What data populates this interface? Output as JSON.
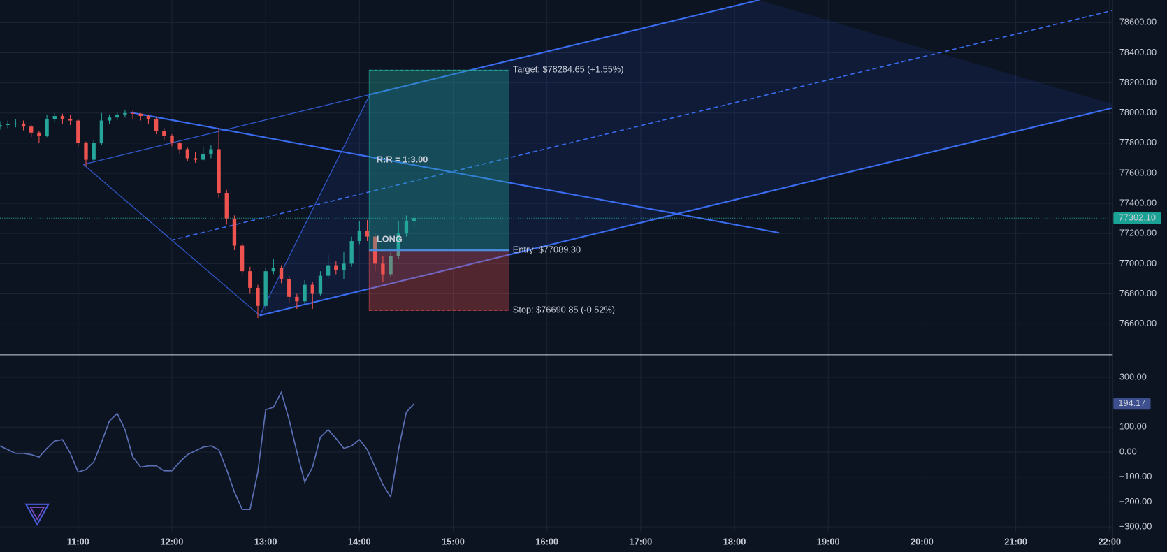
{
  "chart_data": [
    {
      "type": "candlestick",
      "x": [
        610,
        615,
        620,
        625,
        630,
        635,
        640,
        645,
        650,
        655,
        660,
        665,
        670,
        675,
        680,
        685,
        690,
        695,
        700,
        705,
        710,
        715,
        720,
        725,
        730,
        735,
        740,
        745,
        750,
        755,
        760,
        765,
        770,
        775,
        780,
        785,
        790,
        795,
        800,
        805,
        810,
        815,
        820,
        825,
        830,
        835,
        840,
        845,
        850,
        855,
        860,
        865,
        870,
        875
      ],
      "open": [
        77910,
        77920,
        77925,
        77930,
        77910,
        77870,
        77850,
        77960,
        77980,
        77960,
        77950,
        77800,
        77690,
        77800,
        77950,
        77970,
        77990,
        78000,
        77995,
        77980,
        77960,
        77880,
        77850,
        77800,
        77760,
        77700,
        77690,
        77730,
        77760,
        77470,
        77300,
        77120,
        76950,
        76840,
        76720,
        76950,
        76970,
        76900,
        76780,
        76750,
        76860,
        76800,
        76920,
        76990,
        76960,
        77000,
        77150,
        77220,
        77180,
        77000,
        76930,
        77050,
        77200,
        77280
      ],
      "high": [
        77945,
        77950,
        77960,
        77950,
        77920,
        77880,
        77990,
        78000,
        77995,
        77990,
        77960,
        77810,
        77820,
        78000,
        77990,
        78010,
        78020,
        78015,
        78000,
        77990,
        77970,
        77900,
        77860,
        77810,
        77770,
        77740,
        77780,
        77790,
        77900,
        77490,
        77320,
        77140,
        76980,
        76860,
        76970,
        77030,
        76990,
        76920,
        76800,
        76890,
        76880,
        76950,
        77060,
        77020,
        77080,
        77180,
        77280,
        77290,
        77200,
        77050,
        77080,
        77280,
        77320,
        77330
      ],
      "low": [
        77890,
        77900,
        77905,
        77885,
        77840,
        77800,
        77840,
        77940,
        77930,
        77920,
        77780,
        77650,
        77680,
        77790,
        77930,
        77950,
        77970,
        77960,
        77950,
        77930,
        77860,
        77820,
        77780,
        77730,
        77680,
        77670,
        77680,
        77700,
        77440,
        77260,
        77090,
        76920,
        76800,
        76640,
        76700,
        76930,
        76870,
        76740,
        76700,
        76730,
        76700,
        76790,
        76900,
        76930,
        76900,
        76980,
        77130,
        77150,
        76950,
        76880,
        76910,
        77030,
        77180,
        77250
      ],
      "close": [
        77920,
        77925,
        77930,
        77910,
        77870,
        77850,
        77960,
        77980,
        77960,
        77950,
        77800,
        77690,
        77800,
        77950,
        77970,
        77990,
        78000,
        77995,
        77980,
        77960,
        77880,
        77850,
        77800,
        77760,
        77700,
        77690,
        77730,
        77760,
        77470,
        77300,
        77120,
        76950,
        76840,
        76720,
        76950,
        76970,
        76900,
        76780,
        76750,
        76860,
        76800,
        76920,
        76990,
        76960,
        77000,
        77150,
        77220,
        77180,
        77000,
        76930,
        77050,
        77200,
        77280,
        77302.1
      ],
      "up_color": "#26a69a",
      "down_color": "#ef5350",
      "xlim": [
        610,
        1322
      ],
      "xticks": [
        {
          "value": 660,
          "label": "11:00"
        },
        {
          "value": 720,
          "label": "12:00"
        },
        {
          "value": 780,
          "label": "13:00"
        },
        {
          "value": 840,
          "label": "14:00"
        },
        {
          "value": 900,
          "label": "15:00"
        },
        {
          "value": 960,
          "label": "16:00"
        },
        {
          "value": 1020,
          "label": "17:00"
        },
        {
          "value": 1080,
          "label": "18:00"
        },
        {
          "value": 1140,
          "label": "19:00"
        },
        {
          "value": 1200,
          "label": "20:00"
        },
        {
          "value": 1260,
          "label": "21:00"
        },
        {
          "value": 1320,
          "label": "22:00"
        }
      ],
      "ylim": [
        76400,
        78750
      ],
      "yticks": [
        {
          "value": 76600,
          "label": "76600.00"
        },
        {
          "value": 76800,
          "label": "76800.00"
        },
        {
          "value": 77000,
          "label": "77000.00"
        },
        {
          "value": 77200,
          "label": "77200.00"
        },
        {
          "value": 77400,
          "label": "77400.00"
        },
        {
          "value": 77600,
          "label": "77600.00"
        },
        {
          "value": 77800,
          "label": "77800.00"
        },
        {
          "value": 78000,
          "label": "78000.00"
        },
        {
          "value": 78200,
          "label": "78200.00"
        },
        {
          "value": 78400,
          "label": "78400.00"
        },
        {
          "value": 78600,
          "label": "78600.00"
        }
      ],
      "grid": true,
      "last_price": {
        "value": 77302.1,
        "label": "77302.10"
      },
      "position": {
        "label": "LONG",
        "ratio": "R:R = 1:3.00",
        "target": 78284.65,
        "target_label": "Target: $78284.65 (+1.55%)",
        "entry": 77089.3,
        "entry_label": "Entry: $77089.30",
        "stop": 76690.85,
        "stop_label": "Stop: $76690.85 (-0.52%)"
      }
    },
    {
      "type": "line",
      "x": [
        610,
        615,
        620,
        625,
        630,
        635,
        640,
        645,
        650,
        655,
        660,
        665,
        670,
        675,
        680,
        685,
        690,
        695,
        700,
        705,
        710,
        715,
        720,
        725,
        730,
        735,
        740,
        745,
        750,
        755,
        760,
        765,
        770,
        775,
        780,
        785,
        790,
        795,
        800,
        805,
        810,
        815,
        820,
        825,
        830,
        835,
        840,
        845,
        850,
        855,
        860,
        865,
        870,
        875
      ],
      "values": [
        25,
        10,
        -5,
        -5,
        -10,
        -20,
        15,
        45,
        50,
        -5,
        -80,
        -70,
        -40,
        40,
        125,
        155,
        90,
        -20,
        -60,
        -55,
        -55,
        -75,
        -75,
        -40,
        -10,
        5,
        20,
        25,
        10,
        -70,
        -160,
        -230,
        -230,
        -80,
        170,
        180,
        240,
        130,
        0,
        -120,
        -60,
        60,
        90,
        55,
        15,
        25,
        50,
        10,
        -60,
        -130,
        -180,
        10,
        160,
        194.17
      ],
      "color": "#5b6fb5",
      "ylim": [
        -320,
        390
      ],
      "yticks": [
        {
          "value": 300,
          "label": "300.00"
        },
        {
          "value": 100,
          "label": "100.00"
        },
        {
          "value": 0,
          "label": "0.00"
        },
        {
          "value": -100,
          "label": "−100.00"
        },
        {
          "value": -200,
          "label": "−200.00"
        },
        {
          "value": -300,
          "label": "−300.00"
        }
      ],
      "last_value": {
        "value": 194.17,
        "label": "194.17"
      }
    }
  ]
}
